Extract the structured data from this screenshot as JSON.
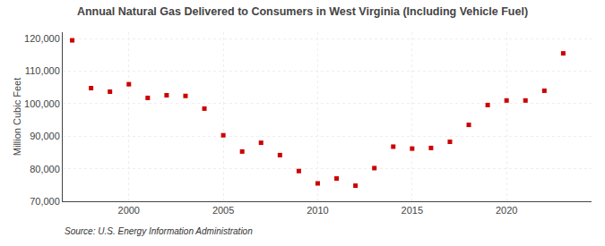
{
  "chart_data": {
    "type": "scatter",
    "title": "Annual Natural Gas Delivered to Consumers in West Virginia (Including Vehicle Fuel)",
    "ylabel": "Million Cubic Feet",
    "annotations": [
      "Source: U.S. Energy Information Administration"
    ],
    "x": [
      1997,
      1998,
      1999,
      2000,
      2001,
      2002,
      2003,
      2004,
      2005,
      2006,
      2007,
      2008,
      2009,
      2010,
      2011,
      2012,
      2013,
      2014,
      2015,
      2016,
      2017,
      2018,
      2019,
      2020,
      2021,
      2022,
      2023
    ],
    "values": [
      119500,
      104800,
      103700,
      106000,
      101800,
      102600,
      102400,
      98500,
      90300,
      85300,
      88000,
      84200,
      79300,
      75500,
      77000,
      74800,
      80200,
      86800,
      86200,
      86400,
      88300,
      93500,
      99600,
      101000,
      101000,
      104000,
      115500
    ],
    "color": "#cc0000",
    "marker": "square",
    "xlim": [
      1996.5,
      2024.5
    ],
    "xticks": [
      2000,
      2005,
      2010,
      2015,
      2020
    ],
    "ylim": [
      70000,
      122000
    ],
    "yticks": [
      {
        "value": 70000,
        "label": "70,000"
      },
      {
        "value": 80000,
        "label": "80,000"
      },
      {
        "value": 90000,
        "label": "90,000"
      },
      {
        "value": 100000,
        "label": "100,000"
      },
      {
        "value": 110000,
        "label": "110,000"
      },
      {
        "value": 120000,
        "label": "120,000"
      }
    ],
    "grid": true
  }
}
